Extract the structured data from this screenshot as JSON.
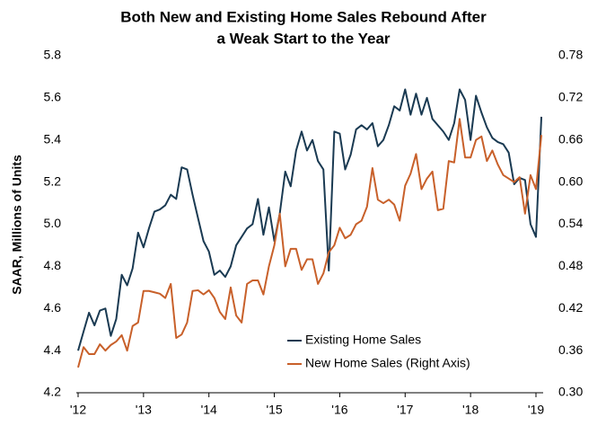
{
  "chart_data": {
    "type": "line",
    "title": "Both New and Existing Home Sales Rebound After",
    "title_line2": "a Weak Start to the Year",
    "y_label": "SAAR, Millions of Units",
    "x": [
      2012,
      2012.083,
      2012.167,
      2012.25,
      2012.333,
      2012.417,
      2012.5,
      2012.583,
      2012.667,
      2012.75,
      2012.833,
      2012.917,
      2013,
      2013.083,
      2013.167,
      2013.25,
      2013.333,
      2013.417,
      2013.5,
      2013.583,
      2013.667,
      2013.75,
      2013.833,
      2013.917,
      2014,
      2014.083,
      2014.167,
      2014.25,
      2014.333,
      2014.417,
      2014.5,
      2014.583,
      2014.667,
      2014.75,
      2014.833,
      2014.917,
      2015,
      2015.083,
      2015.167,
      2015.25,
      2015.333,
      2015.417,
      2015.5,
      2015.583,
      2015.667,
      2015.75,
      2015.833,
      2015.917,
      2016,
      2016.083,
      2016.167,
      2016.25,
      2016.333,
      2016.417,
      2016.5,
      2016.583,
      2016.667,
      2016.75,
      2016.833,
      2016.917,
      2017,
      2017.083,
      2017.167,
      2017.25,
      2017.333,
      2017.417,
      2017.5,
      2017.583,
      2017.667,
      2017.75,
      2017.833,
      2017.917,
      2018,
      2018.083,
      2018.167,
      2018.25,
      2018.333,
      2018.417,
      2018.5,
      2018.583,
      2018.667,
      2018.75,
      2018.833,
      2018.917,
      2019,
      2019.083
    ],
    "series": [
      {
        "name": "Existing Home Sales",
        "color": "#1a3a52",
        "axis": "y",
        "values": [
          4.4,
          4.49,
          4.58,
          4.52,
          4.59,
          4.6,
          4.47,
          4.55,
          4.76,
          4.71,
          4.79,
          4.96,
          4.89,
          4.98,
          5.06,
          5.07,
          5.09,
          5.14,
          5.12,
          5.27,
          5.26,
          5.14,
          5.03,
          4.92,
          4.87,
          4.76,
          4.78,
          4.75,
          4.8,
          4.9,
          4.94,
          4.98,
          5.0,
          5.12,
          4.95,
          5.08,
          4.92,
          5.05,
          5.25,
          5.18,
          5.35,
          5.44,
          5.35,
          5.4,
          5.3,
          5.26,
          4.78,
          5.44,
          5.43,
          5.26,
          5.33,
          5.45,
          5.47,
          5.45,
          5.48,
          5.37,
          5.4,
          5.47,
          5.56,
          5.54,
          5.64,
          5.52,
          5.62,
          5.52,
          5.6,
          5.5,
          5.47,
          5.44,
          5.4,
          5.48,
          5.64,
          5.59,
          5.4,
          5.61,
          5.53,
          5.46,
          5.41,
          5.39,
          5.38,
          5.34,
          5.19,
          5.22,
          5.21,
          5.0,
          4.94,
          5.51
        ]
      },
      {
        "name": "New Home Sales (Right Axis)",
        "color": "#c8602a",
        "axis": "y2",
        "values": [
          0.336,
          0.365,
          0.355,
          0.355,
          0.369,
          0.36,
          0.368,
          0.373,
          0.382,
          0.36,
          0.395,
          0.4,
          0.445,
          0.445,
          0.443,
          0.441,
          0.435,
          0.455,
          0.378,
          0.383,
          0.4,
          0.445,
          0.446,
          0.44,
          0.446,
          0.435,
          0.415,
          0.405,
          0.45,
          0.41,
          0.4,
          0.455,
          0.46,
          0.46,
          0.44,
          0.48,
          0.51,
          0.555,
          0.48,
          0.505,
          0.505,
          0.475,
          0.49,
          0.49,
          0.455,
          0.47,
          0.5,
          0.51,
          0.535,
          0.52,
          0.525,
          0.54,
          0.545,
          0.565,
          0.62,
          0.575,
          0.57,
          0.575,
          0.568,
          0.545,
          0.595,
          0.612,
          0.64,
          0.59,
          0.605,
          0.615,
          0.56,
          0.562,
          0.63,
          0.628,
          0.69,
          0.635,
          0.635,
          0.66,
          0.665,
          0.63,
          0.645,
          0.625,
          0.61,
          0.605,
          0.6,
          0.607,
          0.555,
          0.61,
          0.59,
          0.667
        ]
      }
    ],
    "xlim": [
      2012,
      2019.11
    ],
    "xticks": [
      {
        "value": 2012,
        "label": "'12"
      },
      {
        "value": 2013,
        "label": "'13"
      },
      {
        "value": 2014,
        "label": "'14"
      },
      {
        "value": 2015,
        "label": "'15"
      },
      {
        "value": 2016,
        "label": "'16"
      },
      {
        "value": 2017,
        "label": "'17"
      },
      {
        "value": 2018,
        "label": "'18"
      },
      {
        "value": 2019,
        "label": "'19"
      }
    ],
    "ylim": [
      4.2,
      5.8
    ],
    "yticks": [
      {
        "value": 4.2,
        "label": "4.2"
      },
      {
        "value": 4.4,
        "label": "4.4"
      },
      {
        "value": 4.6,
        "label": "4.6"
      },
      {
        "value": 4.8,
        "label": "4.8"
      },
      {
        "value": 5.0,
        "label": "5.0"
      },
      {
        "value": 5.2,
        "label": "5.2"
      },
      {
        "value": 5.4,
        "label": "5.4"
      },
      {
        "value": 5.6,
        "label": "5.6"
      },
      {
        "value": 5.8,
        "label": "5.8"
      }
    ],
    "y2lim": [
      0.3,
      0.78
    ],
    "y2ticks": [
      {
        "value": 0.3,
        "label": "0.30"
      },
      {
        "value": 0.36,
        "label": "0.36"
      },
      {
        "value": 0.42,
        "label": "0.42"
      },
      {
        "value": 0.48,
        "label": "0.48"
      },
      {
        "value": 0.54,
        "label": "0.54"
      },
      {
        "value": 0.6,
        "label": "0.60"
      },
      {
        "value": 0.66,
        "label": "0.66"
      },
      {
        "value": 0.72,
        "label": "0.72"
      },
      {
        "value": 0.78,
        "label": "0.78"
      }
    ],
    "legend": "lower center"
  }
}
